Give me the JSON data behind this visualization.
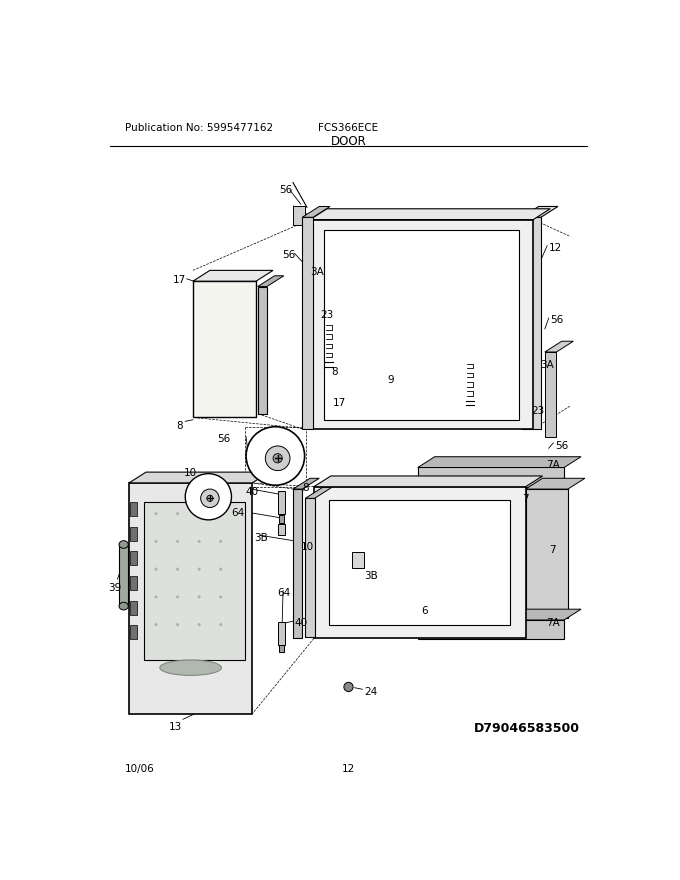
{
  "title": "DOOR",
  "pub_no": "Publication No: 5995477162",
  "model": "FCS366ECE",
  "doc_id": "D79046583500",
  "date": "10/06",
  "page": "12",
  "bg_color": "#ffffff"
}
